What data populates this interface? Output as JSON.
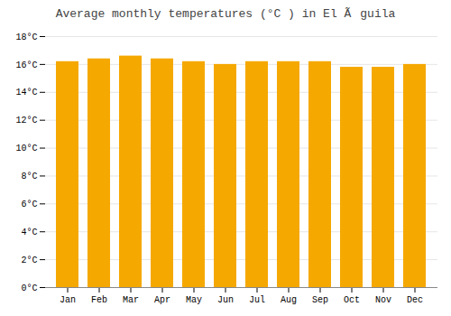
{
  "chart_data": {
    "type": "bar",
    "title": "Average monthly temperatures (°C ) in El Ãguila",
    "categories": [
      "Jan",
      "Feb",
      "Mar",
      "Apr",
      "May",
      "Jun",
      "Jul",
      "Aug",
      "Sep",
      "Oct",
      "Nov",
      "Dec"
    ],
    "values": [
      16.2,
      16.4,
      16.6,
      16.4,
      16.2,
      16.0,
      16.2,
      16.2,
      16.2,
      15.8,
      15.8,
      16.0
    ],
    "color": "#F5A800",
    "ylim": [
      0,
      18
    ],
    "yticks": [
      {
        "value": 0,
        "label": "0°C"
      },
      {
        "value": 2,
        "label": "2°C"
      },
      {
        "value": 4,
        "label": "4°C"
      },
      {
        "value": 6,
        "label": "6°C"
      },
      {
        "value": 8,
        "label": "8°C"
      },
      {
        "value": 10,
        "label": "10°C"
      },
      {
        "value": 12,
        "label": "12°C"
      },
      {
        "value": 14,
        "label": "14°C"
      },
      {
        "value": 16,
        "label": "16°C"
      },
      {
        "value": 18,
        "label": "18°C"
      }
    ],
    "grid": true
  }
}
